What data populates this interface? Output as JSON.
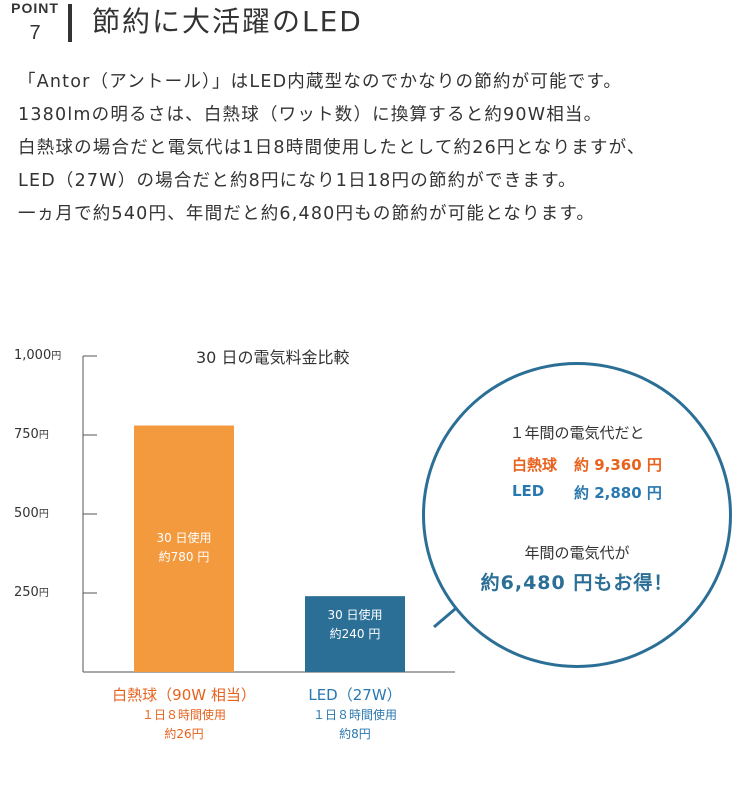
{
  "header": {
    "point_word": "POINT",
    "point_number": "7",
    "title": "節約に大活躍のLED"
  },
  "body": {
    "lines": [
      "「Antor（アントール）」はLED内蔵型なのでかなりの節約が可能です。",
      "1380lmの明るさは、白熱球（ワット数）に換算すると約90W相当。",
      "白熱球の場合だと電気代は1日8時間使用したとして約26円となりますが、",
      "LED（27W）の場合だと約8円になり1日18円の節約ができます。",
      "一ヵ月で約540円、年間だと約6,480円もの節約が可能となります。"
    ]
  },
  "colors": {
    "incandescent": "#f39a3e",
    "led": "#2b6f96",
    "incandescent_text": "#e8621d",
    "led_text": "#2a78b0"
  },
  "chart_data": {
    "type": "bar",
    "title": "30 日の電気料金比較",
    "categories": [
      "白熱球（90W 相当）",
      "LED（27W）"
    ],
    "values": [
      780,
      240
    ],
    "ylim": [
      0,
      1000
    ],
    "yticks": [
      {
        "num": "1,000",
        "unit": "円"
      },
      {
        "num": "750",
        "unit": "円"
      },
      {
        "num": "500",
        "unit": "円"
      },
      {
        "num": "250",
        "unit": "円"
      }
    ],
    "ytick_values": [
      1000,
      750,
      500,
      250
    ],
    "grid": false,
    "bar_labels": [
      {
        "line1": "30 日使用",
        "line2": "約780 円"
      },
      {
        "line1": "30 日使用",
        "line2": "約240 円"
      }
    ],
    "category_details": [
      {
        "name": "白熱球（90W 相当）",
        "usage": "１日８時間使用",
        "daily": "約26円"
      },
      {
        "name": "LED（27W）",
        "usage": "１日８時間使用",
        "daily": "約8円"
      }
    ]
  },
  "callout": {
    "heading": "１年間の電気代だと",
    "rows": [
      {
        "name": "白熱球",
        "value": "約 9,360 円"
      },
      {
        "name": "LED",
        "value": "約 2,880 円"
      }
    ],
    "saving_heading": "年間の電気代が",
    "saving_text": "約6,480 円もお得！"
  }
}
